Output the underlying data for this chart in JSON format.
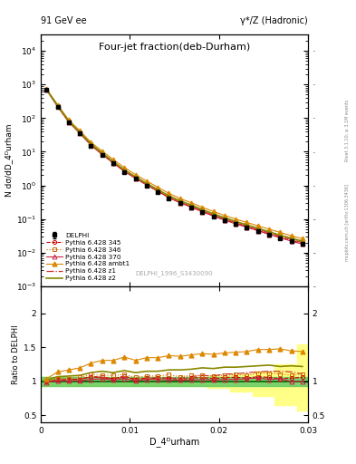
{
  "title_main": "Four-jet fraction(deb-Durham)",
  "header_left": "91 GeV ee",
  "header_right": "γ*/Z (Hadronic)",
  "ylabel_main": "N dσ/dD_4ᴰurham",
  "ylabel_ratio": "Ratio to DELPHI",
  "xlabel": "D_4ᴰurham",
  "right_label_top": "Rivet 3.1.10; ≥ 3.1M events",
  "right_label_bottom": "mcplots.cern.ch [arXiv:1306.3436]",
  "watermark": "DELPHI_1996_S3430090",
  "xlim": [
    0.0,
    0.03
  ],
  "ylim_main": [
    0.001,
    30000
  ],
  "ylim_ratio": [
    0.4,
    2.4
  ],
  "x_data": [
    0.000625,
    0.001875,
    0.003125,
    0.004375,
    0.005625,
    0.006875,
    0.008125,
    0.009375,
    0.010625,
    0.011875,
    0.013125,
    0.014375,
    0.015625,
    0.016875,
    0.018125,
    0.019375,
    0.020625,
    0.021875,
    0.023125,
    0.024375,
    0.025625,
    0.026875,
    0.028125,
    0.029375
  ],
  "delphi_y": [
    700,
    220,
    75,
    35,
    15,
    8.0,
    4.5,
    2.5,
    1.6,
    1.0,
    0.65,
    0.42,
    0.3,
    0.22,
    0.16,
    0.12,
    0.09,
    0.07,
    0.055,
    0.043,
    0.034,
    0.027,
    0.022,
    0.018
  ],
  "delphi_yerr": [
    50,
    15,
    5,
    2.5,
    1.0,
    0.6,
    0.35,
    0.2,
    0.12,
    0.08,
    0.05,
    0.035,
    0.025,
    0.018,
    0.013,
    0.01,
    0.008,
    0.006,
    0.005,
    0.004,
    0.003,
    0.0025,
    0.002,
    0.0015
  ],
  "py345_y": [
    700,
    225,
    77,
    36,
    16,
    8.5,
    4.7,
    2.7,
    1.65,
    1.05,
    0.68,
    0.44,
    0.31,
    0.23,
    0.17,
    0.125,
    0.095,
    0.074,
    0.058,
    0.046,
    0.036,
    0.028,
    0.023,
    0.019
  ],
  "py346_y": [
    705,
    228,
    78,
    37,
    16.5,
    8.7,
    4.9,
    2.75,
    1.7,
    1.08,
    0.7,
    0.46,
    0.32,
    0.24,
    0.175,
    0.13,
    0.098,
    0.077,
    0.06,
    0.048,
    0.038,
    0.03,
    0.024,
    0.02
  ],
  "py370_y": [
    695,
    222,
    76,
    35.5,
    15.5,
    8.3,
    4.6,
    2.6,
    1.62,
    1.03,
    0.67,
    0.43,
    0.305,
    0.225,
    0.165,
    0.122,
    0.093,
    0.072,
    0.057,
    0.045,
    0.035,
    0.028,
    0.022,
    0.018
  ],
  "pyambt1_y": [
    730,
    250,
    88,
    42,
    19,
    10.5,
    5.9,
    3.4,
    2.1,
    1.35,
    0.88,
    0.58,
    0.41,
    0.305,
    0.225,
    0.168,
    0.128,
    0.1,
    0.079,
    0.063,
    0.05,
    0.04,
    0.032,
    0.026
  ],
  "pyz1_y": [
    700,
    225,
    77,
    36,
    16,
    8.5,
    4.7,
    2.65,
    1.65,
    1.05,
    0.68,
    0.44,
    0.315,
    0.235,
    0.175,
    0.13,
    0.1,
    0.078,
    0.062,
    0.049,
    0.039,
    0.031,
    0.025,
    0.02
  ],
  "pyz2_y": [
    715,
    235,
    81,
    38,
    17,
    9.2,
    5.1,
    2.9,
    1.8,
    1.15,
    0.75,
    0.49,
    0.35,
    0.26,
    0.192,
    0.143,
    0.109,
    0.085,
    0.067,
    0.053,
    0.042,
    0.033,
    0.027,
    0.022
  ],
  "ratio345": [
    1.0,
    1.02,
    1.03,
    1.03,
    1.07,
    1.06,
    1.04,
    1.08,
    1.03,
    1.05,
    1.05,
    1.05,
    1.03,
    1.05,
    1.06,
    1.04,
    1.06,
    1.06,
    1.05,
    1.07,
    1.06,
    1.04,
    1.05,
    1.06
  ],
  "ratio346": [
    1.01,
    1.04,
    1.04,
    1.06,
    1.1,
    1.09,
    1.09,
    1.1,
    1.06,
    1.08,
    1.08,
    1.1,
    1.07,
    1.09,
    1.09,
    1.08,
    1.09,
    1.1,
    1.09,
    1.12,
    1.12,
    1.11,
    1.09,
    1.11
  ],
  "ratio370": [
    0.99,
    1.01,
    1.01,
    1.01,
    1.03,
    1.04,
    1.02,
    1.04,
    1.01,
    1.03,
    1.03,
    1.02,
    1.02,
    1.02,
    1.03,
    1.02,
    1.03,
    1.03,
    1.04,
    1.05,
    1.03,
    1.04,
    1.0,
    1.0
  ],
  "ratioambt1": [
    1.04,
    1.14,
    1.17,
    1.2,
    1.27,
    1.31,
    1.31,
    1.36,
    1.31,
    1.35,
    1.35,
    1.38,
    1.37,
    1.39,
    1.41,
    1.4,
    1.42,
    1.43,
    1.44,
    1.47,
    1.47,
    1.48,
    1.45,
    1.44
  ],
  "ratioz1": [
    1.0,
    1.02,
    1.03,
    1.03,
    1.07,
    1.06,
    1.04,
    1.06,
    1.03,
    1.05,
    1.05,
    1.05,
    1.05,
    1.07,
    1.09,
    1.08,
    1.11,
    1.11,
    1.13,
    1.14,
    1.15,
    1.15,
    1.14,
    1.11
  ],
  "ratioz2": [
    1.02,
    1.07,
    1.08,
    1.09,
    1.13,
    1.15,
    1.13,
    1.16,
    1.13,
    1.15,
    1.15,
    1.17,
    1.17,
    1.18,
    1.2,
    1.19,
    1.21,
    1.21,
    1.22,
    1.23,
    1.24,
    1.22,
    1.23,
    1.22
  ],
  "band_x": [
    0.0,
    0.00125,
    0.00125,
    0.00375,
    0.00375,
    0.00625,
    0.00625,
    0.00875,
    0.00875,
    0.01125,
    0.01125,
    0.01375,
    0.01375,
    0.01625,
    0.01625,
    0.01875,
    0.01875,
    0.02125,
    0.02125,
    0.02375,
    0.02375,
    0.02625,
    0.02625,
    0.02875,
    0.02875,
    0.03
  ],
  "green_hi": [
    1.07,
    1.07,
    1.07,
    1.07,
    1.07,
    1.07,
    1.07,
    1.07,
    1.07,
    1.07,
    1.07,
    1.07,
    1.07,
    1.07,
    1.07,
    1.07,
    1.07,
    1.07,
    1.07,
    1.07,
    1.07,
    1.07,
    1.07,
    1.07,
    1.07,
    1.07
  ],
  "green_lo": [
    0.93,
    0.93,
    0.93,
    0.93,
    0.93,
    0.93,
    0.93,
    0.93,
    0.93,
    0.93,
    0.93,
    0.93,
    0.93,
    0.93,
    0.93,
    0.93,
    0.93,
    0.93,
    0.93,
    0.93,
    0.93,
    0.93,
    0.93,
    0.93,
    0.93,
    0.93
  ],
  "yellow_hi": [
    1.07,
    1.07,
    1.07,
    1.07,
    1.07,
    1.07,
    1.07,
    1.07,
    1.07,
    1.07,
    1.07,
    1.07,
    1.07,
    1.07,
    1.07,
    1.07,
    1.08,
    1.08,
    1.1,
    1.1,
    1.15,
    1.15,
    1.25,
    1.25,
    1.55,
    1.55
  ],
  "yellow_lo": [
    0.93,
    0.93,
    0.93,
    0.93,
    0.93,
    0.93,
    0.93,
    0.93,
    0.93,
    0.93,
    0.93,
    0.93,
    0.93,
    0.93,
    0.93,
    0.93,
    0.9,
    0.9,
    0.85,
    0.85,
    0.78,
    0.78,
    0.65,
    0.65,
    0.57,
    0.57
  ],
  "col_delphi": "#000000",
  "col_345": "#cc0000",
  "col_346": "#cc6600",
  "col_370": "#cc2244",
  "col_ambt1": "#dd8800",
  "col_z1": "#cc3333",
  "col_z2": "#888800",
  "col_green": "#66cc66",
  "col_yellow": "#ffff88"
}
